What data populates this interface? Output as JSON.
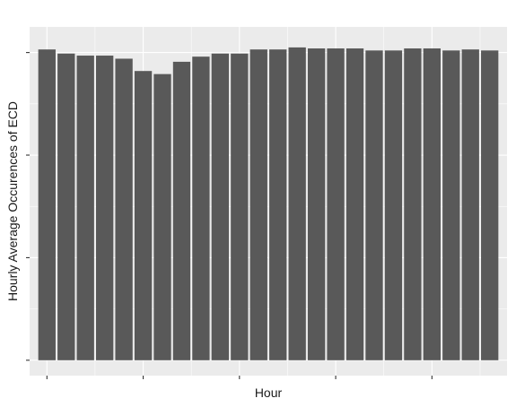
{
  "chart_data": {
    "type": "bar",
    "xlabel": "Hour",
    "ylabel": "Hourly Average Occurences of ECD",
    "x": [
      0,
      1,
      2,
      3,
      4,
      5,
      6,
      7,
      8,
      9,
      10,
      11,
      12,
      13,
      14,
      15,
      16,
      17,
      18,
      19,
      20,
      21,
      22,
      23
    ],
    "values": [
      3.03,
      2.99,
      2.97,
      2.97,
      2.94,
      2.82,
      2.79,
      2.91,
      2.96,
      2.99,
      2.99,
      3.03,
      3.03,
      3.05,
      3.04,
      3.04,
      3.04,
      3.02,
      3.02,
      3.04,
      3.04,
      3.02,
      3.03,
      3.02
    ],
    "ylim": [
      -0.15,
      3.25
    ],
    "xlim": [
      -0.9,
      23.9
    ],
    "y_ticks": [
      0,
      1,
      2,
      3
    ],
    "x_ticks": [
      0,
      5,
      10,
      15,
      20
    ],
    "tick_labels_shown": false,
    "grid": true,
    "colors": {
      "bar": "#595959",
      "panel": "#ebebeb",
      "grid": "#ffffff"
    }
  }
}
